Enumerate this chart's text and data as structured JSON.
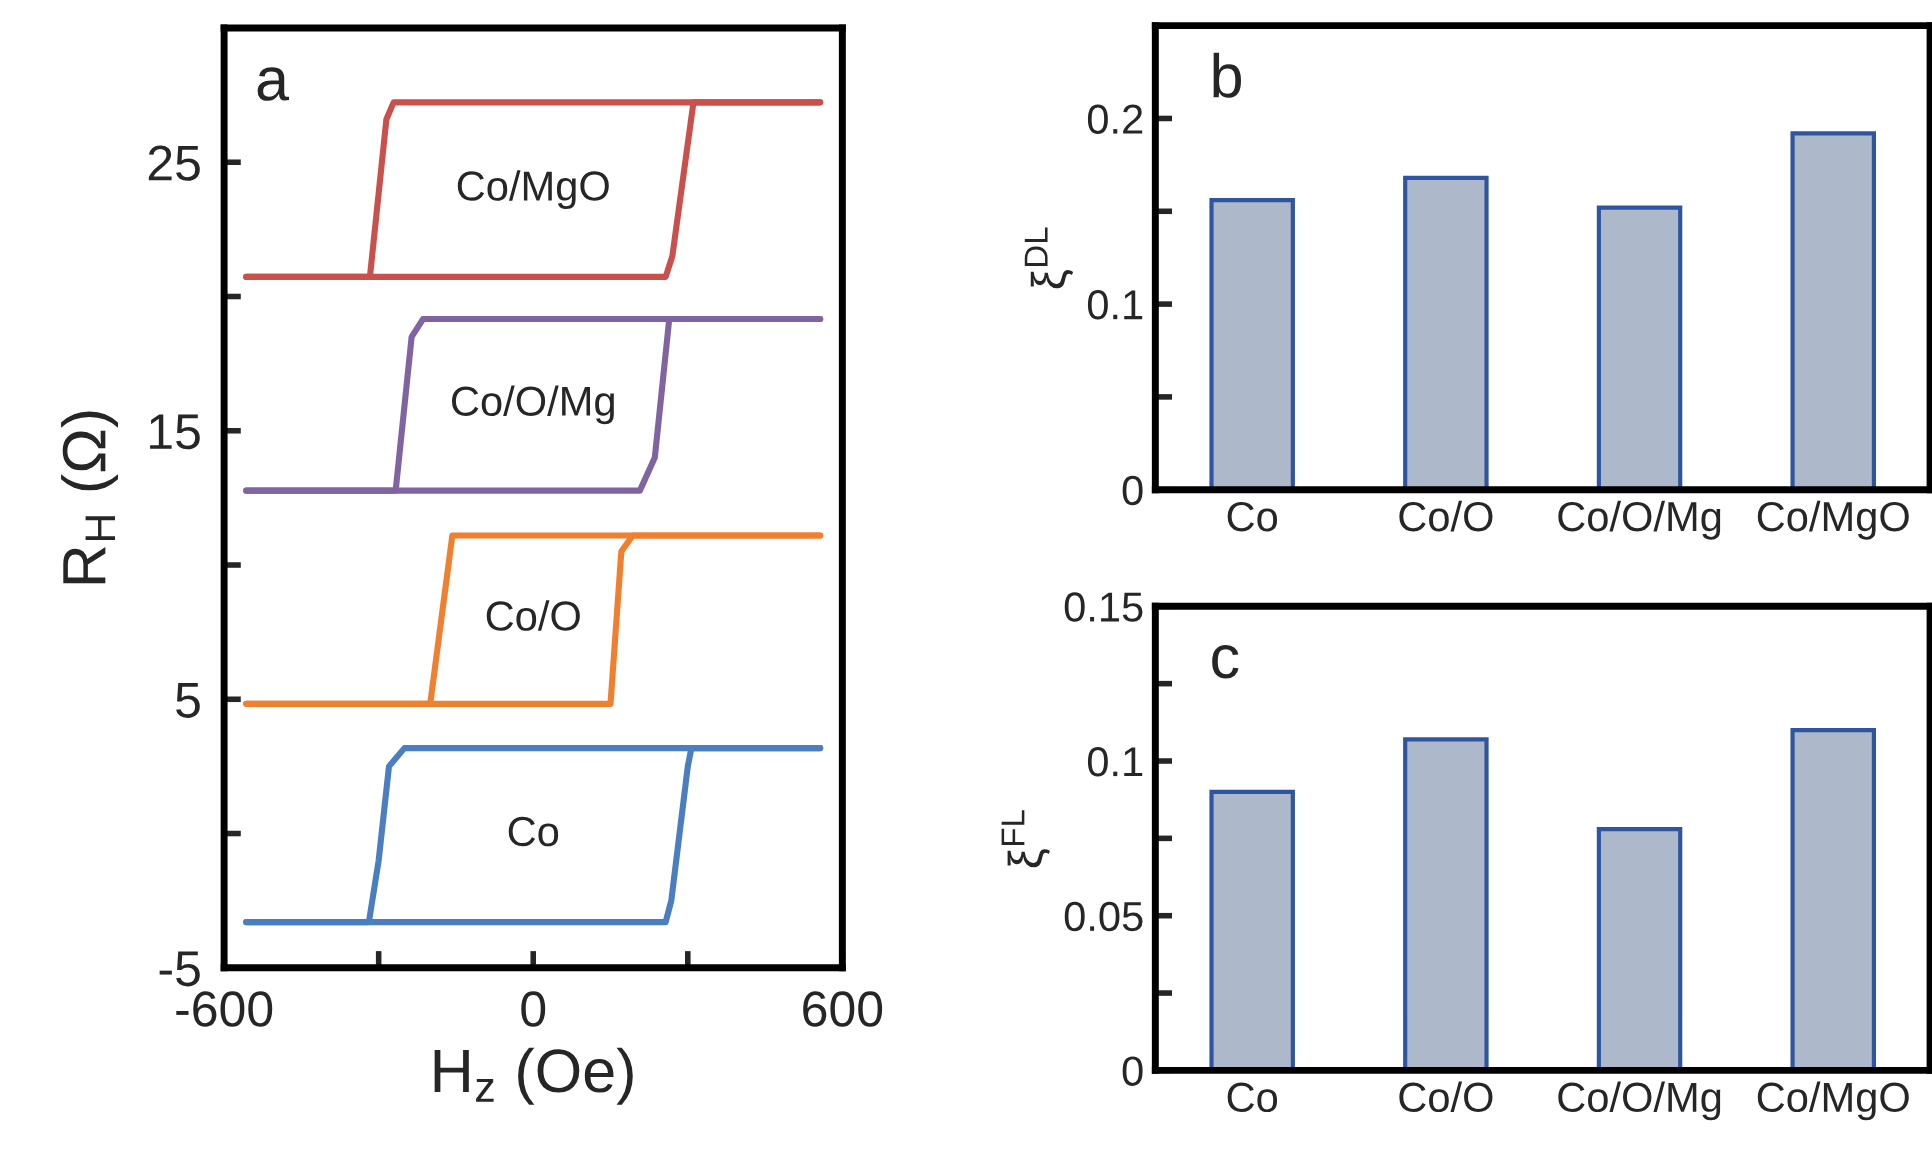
{
  "chart_data": [
    {
      "type": "line",
      "xlabel": "H$_{z}$ (Oe)",
      "ylabel": "R$_{H}$ (Ω)",
      "annotations": [
        "a"
      ],
      "xlim": [
        -600,
        600
      ],
      "xticks": [
        -600,
        {
          "value": -300,
          "label": null
        },
        0,
        {
          "value": 300,
          "label": null
        },
        600
      ],
      "ylim": [
        -5,
        30
      ],
      "yticks": [
        -5,
        {
          "value": 0,
          "label": null
        },
        5,
        {
          "value": 10,
          "label": null
        },
        15,
        {
          "value": 20,
          "label": null
        },
        25
      ],
      "grid": false,
      "legend": false,
      "marker": "none",
      "line_style": "solid",
      "series": [
        {
          "name": "Co",
          "color": "#4a7ec0",
          "x": [
            -557,
            257,
            268,
            300,
            307,
            557
          ],
          "values": [
            -3.3,
            -3.3,
            -2.5,
            2.5,
            3.18,
            3.18
          ]
        },
        {
          "color": "#4a7ec0",
          "x": [
            -557,
            -319,
            -300,
            -280,
            -250,
            557
          ],
          "values": [
            -3.3,
            -3.3,
            -1,
            2.5,
            3.18,
            3.18
          ]
        },
        {
          "name": "Co/O",
          "color": "#f07f2f",
          "x": [
            -557,
            150,
            171,
            193,
            557
          ],
          "values": [
            4.83,
            4.83,
            10.5,
            11.1,
            11.1
          ]
        },
        {
          "color": "#f07f2f",
          "x": [
            -557,
            -200,
            -157,
            557
          ],
          "values": [
            4.83,
            4.83,
            11.1,
            11.1
          ]
        },
        {
          "name": "Co/O/Mg",
          "color": "#8064a2",
          "x": [
            -557,
            207,
            236,
            264,
            557
          ],
          "values": [
            12.77,
            12.77,
            14,
            19.16,
            19.16
          ]
        },
        {
          "color": "#8064a2",
          "x": [
            -557,
            -267,
            -236,
            -214,
            557
          ],
          "values": [
            12.77,
            12.77,
            18.5,
            19.16,
            19.16
          ]
        },
        {
          "name": "Co/MgO",
          "color": "#c9504b",
          "x": [
            -557,
            257,
            270,
            311,
            557
          ],
          "values": [
            20.73,
            20.73,
            21.5,
            27.23,
            27.23
          ]
        },
        {
          "color": "#c9504b",
          "x": [
            -557,
            -317,
            -285,
            -271,
            557
          ],
          "values": [
            20.73,
            20.73,
            26.6,
            27.23,
            27.23
          ]
        }
      ]
    },
    {
      "type": "bar",
      "ylabel": "ξ$^{DL}$",
      "annotations": [
        "b"
      ],
      "categories": [
        "Co",
        "Co/O",
        "Co/O/Mg",
        "Co/MgO"
      ],
      "values": [
        0.156,
        0.168,
        0.152,
        0.192
      ],
      "color": "#adb9ca",
      "ylim": [
        0,
        0.25
      ],
      "yticks": [
        0,
        {
          "value": 0.05,
          "label": null
        },
        0.1,
        {
          "value": 0.15,
          "label": null
        },
        0.2
      ],
      "grid": false,
      "legend": false
    },
    {
      "type": "bar",
      "ylabel": "ξ$^{FL}$",
      "annotations": [
        "c"
      ],
      "categories": [
        "Co",
        "Co/O",
        "Co/O/Mg",
        "Co/MgO"
      ],
      "values": [
        0.09,
        0.107,
        0.078,
        0.11
      ],
      "color": "#adb9ca",
      "ylim": [
        0,
        0.15
      ],
      "yticks": [
        0,
        {
          "value": 0.025,
          "label": null
        },
        0.05,
        {
          "value": 0.075,
          "label": null
        },
        0.1,
        {
          "value": 0.125,
          "label": null
        },
        0.15
      ],
      "grid": false,
      "legend": false
    }
  ]
}
